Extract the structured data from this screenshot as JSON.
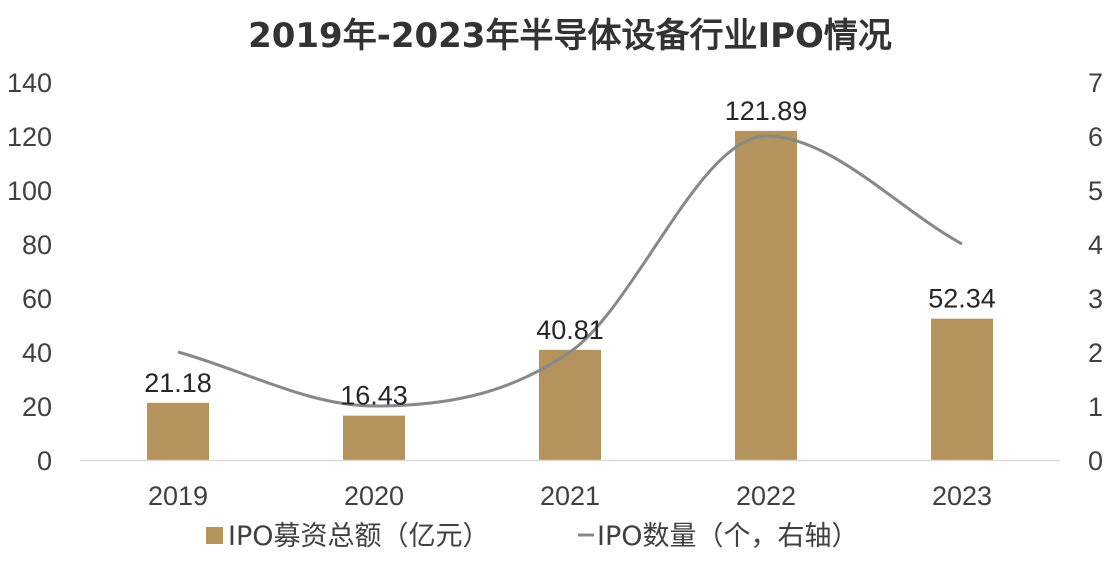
{
  "chart_data": {
    "type": "bar",
    "title": "2019年-2023年半导体设备行业IPO情况",
    "categories": [
      "2019",
      "2020",
      "2021",
      "2022",
      "2023"
    ],
    "series": [
      {
        "name": "IPO募资总额（亿元）",
        "type": "bar",
        "axis": "left",
        "values": [
          21.18,
          16.43,
          40.81,
          121.89,
          52.34
        ],
        "color": "#B5935D"
      },
      {
        "name": "IPO数量（个，右轴）",
        "type": "line",
        "smooth": true,
        "axis": "right",
        "values": [
          2,
          1,
          2,
          6,
          4
        ],
        "color": "#888888"
      }
    ],
    "data_labels": [
      "21.18",
      "16.43",
      "40.81",
      "121.89",
      "52.34"
    ],
    "y_left": {
      "min": 0,
      "max": 140,
      "ticks": [
        "0",
        "20",
        "40",
        "60",
        "80",
        "100",
        "120",
        "140"
      ]
    },
    "y_right": {
      "min": 0,
      "max": 7,
      "ticks": [
        "0",
        "1",
        "2",
        "3",
        "4",
        "5",
        "6",
        "7"
      ]
    },
    "grid": false,
    "legend_position": "bottom"
  }
}
